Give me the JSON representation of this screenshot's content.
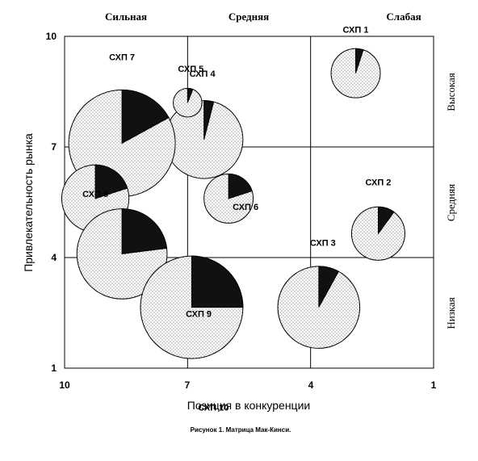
{
  "chart_data": {
    "type": "bubble",
    "xlabel": "Позиция в конкуренции",
    "ylabel": "Привлекательность рынка",
    "xlim": [
      10,
      1
    ],
    "ylim": [
      1,
      10
    ],
    "x_ticks": [
      "10",
      "7",
      "4",
      "1"
    ],
    "y_ticks": [
      "1",
      "4",
      "7",
      "10"
    ],
    "column_labels": [
      "Сильная",
      "Средняя",
      "Слабая"
    ],
    "row_labels": [
      "Высокая",
      "Средняя",
      "Низкая"
    ],
    "caption": "Рисунок 1. Матрица Мак-Кинси.",
    "grid": true,
    "points": [
      {
        "label": "СХП 1",
        "x": 2.9,
        "y": 9.0,
        "size": 0.6,
        "share": 0.05
      },
      {
        "label": "СХП 2",
        "x": 2.35,
        "y": 4.65,
        "size": 0.65,
        "share": 0.1
      },
      {
        "label": "СХП 3",
        "x": 3.8,
        "y": 2.65,
        "size": 1.0,
        "share": 0.08
      },
      {
        "label": "СХП 4",
        "x": 6.6,
        "y": 7.2,
        "size": 0.95,
        "share": 0.04
      },
      {
        "label": "СХП 5",
        "x": 7.0,
        "y": 8.2,
        "size": 0.35,
        "share": 0.06
      },
      {
        "label": "СХП 6",
        "x": 6.0,
        "y": 5.6,
        "size": 0.6,
        "share": 0.2
      },
      {
        "label": "СХП 7",
        "x": 8.6,
        "y": 7.1,
        "size": 1.3,
        "share": 0.17
      },
      {
        "label": "СХП 8",
        "x": 9.25,
        "y": 5.6,
        "size": 0.82,
        "share": 0.2
      },
      {
        "label": "СХП 9",
        "x": 8.6,
        "y": 4.1,
        "size": 1.1,
        "share": 0.23
      },
      {
        "label": "СХП 10",
        "x": 6.9,
        "y": 2.65,
        "size": 1.25,
        "share": 0.25
      }
    ]
  }
}
